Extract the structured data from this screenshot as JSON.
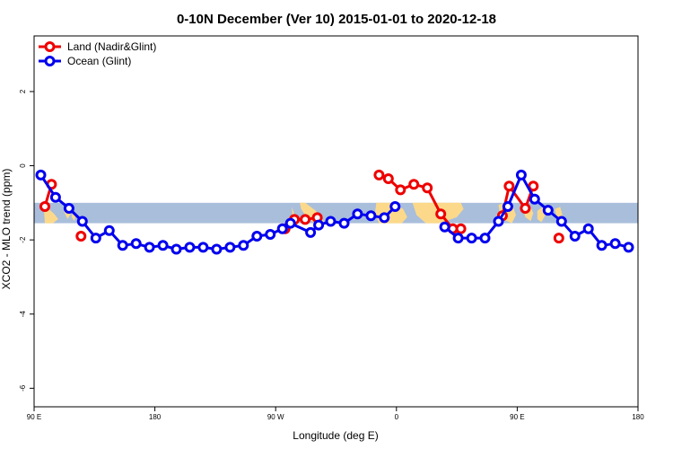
{
  "chart_data": {
    "type": "line",
    "title": "0-10N December (Ver 10)   2015-01-01 to 2020-12-18",
    "xlabel": "Longitude (deg E)",
    "ylabel": "XCO2 - MLO trend (ppm)",
    "xlim": [
      90,
      540
    ],
    "ylim": [
      -6.5,
      3.5
    ],
    "x_ticks": [
      {
        "value": 90,
        "label": "90 E"
      },
      {
        "value": 180,
        "label": "180"
      },
      {
        "value": 270,
        "label": "90 W"
      },
      {
        "value": 360,
        "label": "0"
      },
      {
        "value": 450,
        "label": "90 E"
      },
      {
        "value": 540,
        "label": "180"
      }
    ],
    "y_ticks": [
      {
        "value": -6,
        "label": "-6"
      },
      {
        "value": -4,
        "label": "-4"
      },
      {
        "value": -2,
        "label": "-2"
      },
      {
        "value": 0,
        "label": "0"
      },
      {
        "value": 2,
        "label": "2"
      }
    ],
    "grid": false,
    "legend_position": "top-left",
    "background_map": {
      "lat_range": "0-10N",
      "ocean_color": "#a8bedb",
      "land_color": "#fcd98a",
      "y_range": [
        -1.55,
        -1.0
      ]
    },
    "series": [
      {
        "name": "Land (Nadir&Glint)",
        "color": "#ee0000",
        "segments": [
          [
            [
              98,
              -1.1
            ],
            [
              103,
              -0.5
            ]
          ],
          [
            [
              125,
              -1.9
            ]
          ],
          [
            [
              277,
              -1.7
            ],
            [
              284,
              -1.45
            ],
            [
              292,
              -1.45
            ],
            [
              301,
              -1.4
            ]
          ],
          [
            [
              347,
              -0.25
            ],
            [
              354,
              -0.35
            ],
            [
              363,
              -0.65
            ],
            [
              373,
              -0.5
            ],
            [
              383,
              -0.6
            ],
            [
              393,
              -1.3
            ],
            [
              402,
              -1.7
            ],
            [
              408,
              -1.7
            ]
          ],
          [
            [
              439,
              -1.35
            ],
            [
              444,
              -0.55
            ],
            [
              456,
              -1.15
            ],
            [
              462,
              -0.55
            ]
          ],
          [
            [
              481,
              -1.95
            ]
          ]
        ]
      },
      {
        "name": "Ocean (Glint)",
        "color": "#0000ee",
        "segments": [
          [
            [
              95,
              -0.25
            ],
            [
              106,
              -0.85
            ],
            [
              116,
              -1.15
            ],
            [
              126,
              -1.5
            ],
            [
              136,
              -1.95
            ],
            [
              146,
              -1.75
            ],
            [
              156,
              -2.15
            ],
            [
              166,
              -2.1
            ],
            [
              176,
              -2.2
            ],
            [
              186,
              -2.15
            ],
            [
              196,
              -2.25
            ],
            [
              206,
              -2.2
            ],
            [
              216,
              -2.2
            ],
            [
              226,
              -2.25
            ],
            [
              236,
              -2.2
            ],
            [
              246,
              -2.15
            ],
            [
              256,
              -1.9
            ],
            [
              266,
              -1.85
            ],
            [
              275,
              -1.7
            ],
            [
              281,
              -1.55
            ],
            [
              296,
              -1.8
            ],
            [
              302,
              -1.6
            ],
            [
              311,
              -1.5
            ],
            [
              321,
              -1.55
            ],
            [
              331,
              -1.3
            ],
            [
              341,
              -1.35
            ],
            [
              351,
              -1.4
            ],
            [
              359,
              -1.1
            ]
          ],
          [
            [
              396,
              -1.65
            ],
            [
              406,
              -1.95
            ],
            [
              416,
              -1.95
            ],
            [
              426,
              -1.95
            ],
            [
              436,
              -1.5
            ],
            [
              443,
              -1.1
            ],
            [
              453,
              -0.25
            ],
            [
              463,
              -0.9
            ],
            [
              473,
              -1.2
            ],
            [
              483,
              -1.5
            ],
            [
              493,
              -1.9
            ],
            [
              503,
              -1.7
            ],
            [
              513,
              -2.15
            ],
            [
              523,
              -2.1
            ],
            [
              533,
              -2.2
            ]
          ]
        ]
      }
    ]
  }
}
